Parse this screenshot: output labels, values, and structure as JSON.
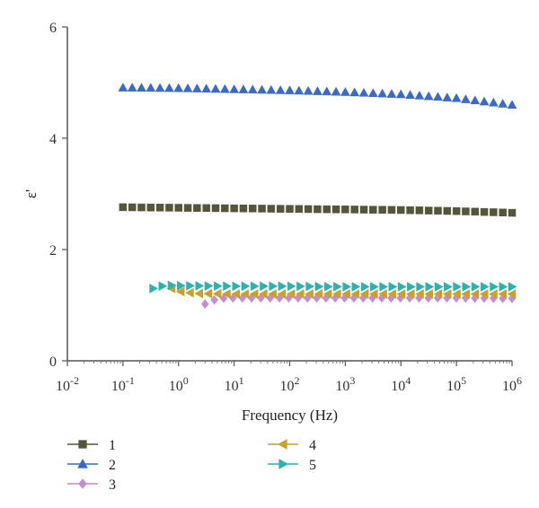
{
  "chart_data": {
    "type": "scatter",
    "xscale": "log",
    "xlabel": "Frequency (Hz)",
    "ylabel": "ε'",
    "xlim": [
      0.01,
      1000000
    ],
    "ylim": [
      0,
      6
    ],
    "x_ticks": [
      0.01,
      0.1,
      1,
      10,
      100,
      1000,
      10000,
      100000,
      1000000
    ],
    "x_tick_labels": [
      {
        "base": "10",
        "exp": "-2"
      },
      {
        "base": "10",
        "exp": "-1"
      },
      {
        "base": "10",
        "exp": "0"
      },
      {
        "base": "10",
        "exp": "1"
      },
      {
        "base": "10",
        "exp": "2"
      },
      {
        "base": "10",
        "exp": "3"
      },
      {
        "base": "10",
        "exp": "4"
      },
      {
        "base": "10",
        "exp": "5"
      },
      {
        "base": "10",
        "exp": "6"
      }
    ],
    "y_ticks": [
      0,
      2,
      4,
      6
    ],
    "y_tick_labels": [
      "0",
      "2",
      "4",
      "6"
    ],
    "grid": false,
    "legend_position": "bottom-left, two columns",
    "series": [
      {
        "name": "1",
        "marker": "square",
        "color": "#55553a",
        "x_range": [
          0.1,
          1000000
        ],
        "points_per_decade": 6,
        "values": [
          [
            0.1,
            2.76
          ],
          [
            1,
            2.75
          ],
          [
            10,
            2.74
          ],
          [
            100,
            2.73
          ],
          [
            1000,
            2.72
          ],
          [
            10000,
            2.71
          ],
          [
            100000,
            2.69
          ],
          [
            1000000,
            2.66
          ]
        ]
      },
      {
        "name": "2",
        "marker": "triangle-up",
        "color": "#3a6bc9",
        "x_range": [
          0.1,
          1000000
        ],
        "points_per_decade": 6,
        "values": [
          [
            0.1,
            4.91
          ],
          [
            1,
            4.9
          ],
          [
            10,
            4.88
          ],
          [
            100,
            4.86
          ],
          [
            1000,
            4.83
          ],
          [
            10000,
            4.79
          ],
          [
            100000,
            4.72
          ],
          [
            1000000,
            4.6
          ]
        ]
      },
      {
        "name": "3",
        "marker": "diamond",
        "color": "#c48cd8",
        "x_range": [
          3,
          1000000
        ],
        "points_per_decade": 6,
        "values": [
          [
            3,
            1.02
          ],
          [
            5,
            1.12
          ],
          [
            10,
            1.13
          ],
          [
            100,
            1.13
          ],
          [
            1000,
            1.13
          ],
          [
            10000,
            1.13
          ],
          [
            100000,
            1.13
          ],
          [
            1000000,
            1.12
          ]
        ]
      },
      {
        "name": "4",
        "marker": "triangle-left",
        "color": "#c9a227",
        "x_range": [
          0.75,
          1000000
        ],
        "points_per_decade": 6,
        "values": [
          [
            0.75,
            1.3
          ],
          [
            1,
            1.25
          ],
          [
            2,
            1.21
          ],
          [
            10,
            1.2
          ],
          [
            100,
            1.2
          ],
          [
            1000,
            1.2
          ],
          [
            10000,
            1.2
          ],
          [
            100000,
            1.2
          ],
          [
            1000000,
            1.2
          ]
        ]
      },
      {
        "name": "5",
        "marker": "triangle-right",
        "color": "#2bb3b0",
        "x_range": [
          0.35,
          1000000
        ],
        "points_per_decade": 6,
        "values": [
          [
            0.35,
            1.3
          ],
          [
            0.6,
            1.36
          ],
          [
            1,
            1.35
          ],
          [
            10,
            1.34
          ],
          [
            100,
            1.34
          ],
          [
            1000,
            1.33
          ],
          [
            10000,
            1.33
          ],
          [
            100000,
            1.33
          ],
          [
            1000000,
            1.33
          ]
        ]
      }
    ]
  }
}
